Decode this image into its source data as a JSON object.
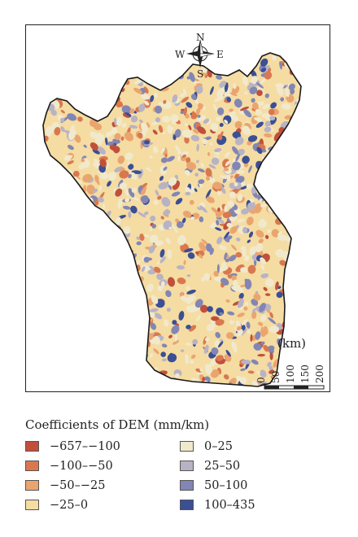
{
  "compass": {
    "north": "N",
    "south": "S",
    "east": "E",
    "west": "W"
  },
  "scale": {
    "unit": "(km)",
    "ticks": [
      "0",
      "50",
      "100",
      "150",
      "200"
    ]
  },
  "legend": {
    "title": "Coefficients of DEM (mm/km)",
    "items": [
      {
        "label": "−657–−100",
        "color": "#c0503c"
      },
      {
        "label": "−100–−50",
        "color": "#d9784f"
      },
      {
        "label": "−50–−25",
        "color": "#eaa56f"
      },
      {
        "label": "−25–0",
        "color": "#f5dca2"
      },
      {
        "label": "0–25",
        "color": "#f1e9cc"
      },
      {
        "label": "25–50",
        "color": "#b8b3c4"
      },
      {
        "label": "50–100",
        "color": "#8286b4"
      },
      {
        "label": "100–435",
        "color": "#3b4f94"
      }
    ]
  }
}
